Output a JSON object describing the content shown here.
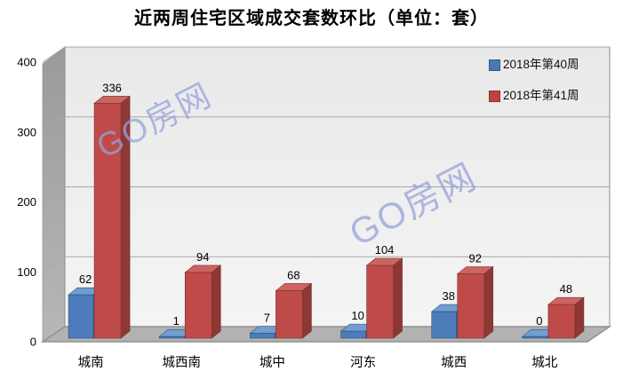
{
  "title": "近两周住宅区域成交套数环比（单位：套）",
  "watermarks": [
    {
      "text": "GO房网"
    },
    {
      "text": "GO房网"
    }
  ],
  "legend": {
    "position": "top-right-inside",
    "items": [
      {
        "label": "2018年第40周",
        "color": "#4779b3"
      },
      {
        "label": "2018年第41周",
        "color": "#bb4441"
      }
    ]
  },
  "chart_data": {
    "type": "bar",
    "style": "3d-clustered-column",
    "title": "近两周住宅区域成交套数环比（单位：套）",
    "categories": [
      "城南",
      "城西南",
      "城中",
      "河东",
      "城西",
      "城北"
    ],
    "series": [
      {
        "name": "2018年第40周",
        "values": [
          62,
          1,
          7,
          10,
          38,
          0
        ],
        "colors": {
          "front": "#4c7cba",
          "top": "#719dd3",
          "side": "#3a6190",
          "stroke": "#2e4f78"
        }
      },
      {
        "name": "2018年第41周",
        "values": [
          336,
          94,
          68,
          104,
          92,
          48
        ],
        "colors": {
          "front": "#bf4b48",
          "top": "#cc6461",
          "side": "#8e3836",
          "stroke": "#77302d"
        }
      }
    ],
    "ylim": [
      0,
      400
    ],
    "yticks": [
      0,
      100,
      200,
      300,
      400
    ],
    "xlabel": "",
    "ylabel": "",
    "grid": true,
    "data_labels": true,
    "legend_position": "top-right-inside",
    "walls": {
      "back_top": "#e9e9e9",
      "back_bottom": "#f4f4f4",
      "side_top": "#9a9a9a",
      "side_bottom": "#b7b7b7",
      "floor": "#b2b2b2",
      "edge": "#8c8c8c",
      "gridline": "#a8a8a8"
    }
  }
}
